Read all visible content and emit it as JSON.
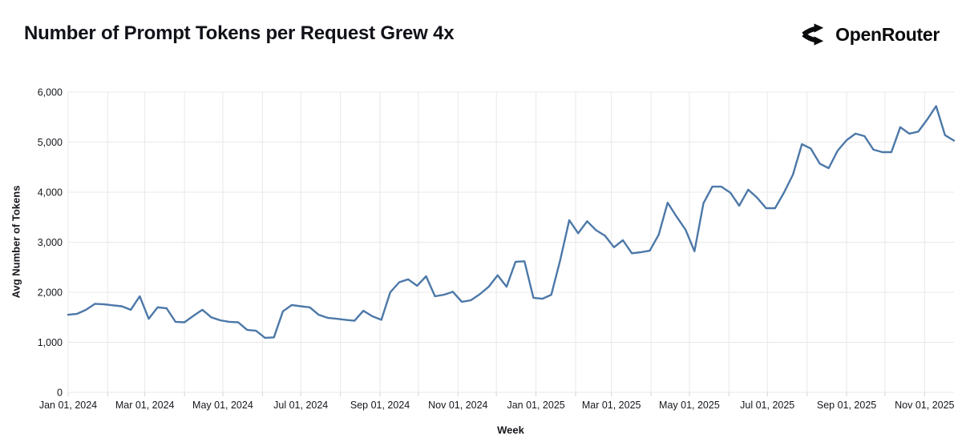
{
  "header": {
    "title": "Number of Prompt Tokens per Request Grew 4x",
    "brand": "OpenRouter"
  },
  "chart_data": {
    "type": "line",
    "title": "Number of Prompt Tokens per Request Grew 4x",
    "xlabel": "Week",
    "ylabel": "Avg Number of Tokens",
    "x_start_date": "2024-01-01",
    "x_step_days": 7,
    "x_tick_labels": [
      "Jan 01, 2024",
      "Mar 01, 2024",
      "May 01, 2024",
      "Jul 01, 2024",
      "Sep 01, 2024",
      "Nov 01, 2024",
      "Jan 01, 2025",
      "Mar 01, 2025",
      "May 01, 2025",
      "Jul 01, 2025",
      "Sep 01, 2025",
      "Nov 01, 2025"
    ],
    "y_ticks": [
      0,
      1000,
      2000,
      3000,
      4000,
      5000,
      6000
    ],
    "y_tick_labels": [
      "0",
      "1,000",
      "2,000",
      "3,000",
      "4,000",
      "5,000",
      "6,000"
    ],
    "ylim": [
      0,
      6000
    ],
    "grid": true,
    "legend": "none",
    "line_color": "#4c78a8",
    "grid_color": "#e8e8ea",
    "tick_color": "#d4d4d8",
    "values": [
      1550,
      1570,
      1650,
      1770,
      1760,
      1740,
      1720,
      1650,
      1920,
      1470,
      1700,
      1680,
      1410,
      1400,
      1530,
      1650,
      1500,
      1440,
      1410,
      1400,
      1250,
      1230,
      1090,
      1100,
      1620,
      1745,
      1720,
      1700,
      1550,
      1490,
      1470,
      1450,
      1430,
      1630,
      1520,
      1450,
      2000,
      2200,
      2260,
      2130,
      2320,
      1920,
      1950,
      2010,
      1810,
      1840,
      1960,
      2110,
      2340,
      2110,
      2610,
      2620,
      1890,
      1870,
      1950,
      2650,
      3440,
      3180,
      3420,
      3240,
      3130,
      2900,
      3040,
      2780,
      2800,
      2830,
      3150,
      3790,
      3510,
      3250,
      2820,
      3780,
      4110,
      4110,
      3990,
      3730,
      4050,
      3890,
      3680,
      3680,
      3990,
      4350,
      4960,
      4870,
      4570,
      4480,
      4830,
      5040,
      5170,
      5120,
      4850,
      4800,
      4800,
      5300,
      5170,
      5210,
      5450,
      5720,
      5140,
      5030
    ]
  }
}
